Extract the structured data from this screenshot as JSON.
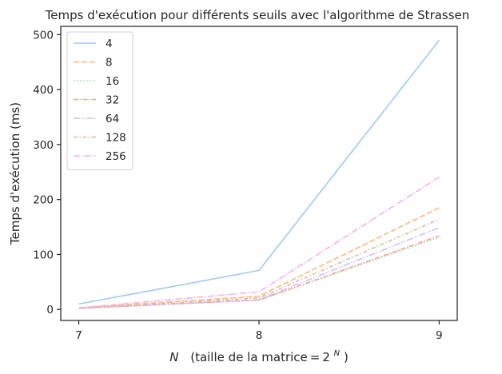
{
  "chart_data": {
    "type": "line",
    "title": "Temps d'exécution pour différents seuils avec l'algorithme de Strassen",
    "xlabel_var": "N",
    "xlabel_text": "(taille de la matrice = 2",
    "xlabel_sup": "N",
    "xlabel_close": ")",
    "ylabel": "Temps d'exécution (ms)",
    "x": [
      7,
      8,
      9
    ],
    "x_ticks": [
      7,
      8,
      9
    ],
    "y_ticks": [
      0,
      100,
      200,
      300,
      400,
      500
    ],
    "xlim": [
      6.9,
      9.1
    ],
    "ylim": [
      -20,
      515
    ],
    "grid": false,
    "legend_position": "top-left",
    "series": [
      {
        "name": "4",
        "values": [
          10,
          71,
          490
        ],
        "color": "#a1c9f4",
        "dash": ""
      },
      {
        "name": "8",
        "values": [
          3,
          24,
          185
        ],
        "color": "#ffb482",
        "dash": "7,3"
      },
      {
        "name": "16",
        "values": [
          2,
          17,
          131
        ],
        "color": "#8de5a1",
        "dash": "1.5,2.5"
      },
      {
        "name": "32",
        "values": [
          2,
          17,
          134
        ],
        "color": "#ff9f9b",
        "dash": "6,2,1.5,2"
      },
      {
        "name": "64",
        "values": [
          2,
          18,
          149
        ],
        "color": "#d0bbff",
        "dash": "8,2,1.5,2,1.5,2"
      },
      {
        "name": "128",
        "values": [
          2,
          21,
          164
        ],
        "color": "#debb9b",
        "dash": "5,2.5,1.5,2.5"
      },
      {
        "name": "256",
        "values": [
          3,
          32,
          241
        ],
        "color": "#fab0e4",
        "dash": "8,2,1.5,2"
      }
    ]
  }
}
